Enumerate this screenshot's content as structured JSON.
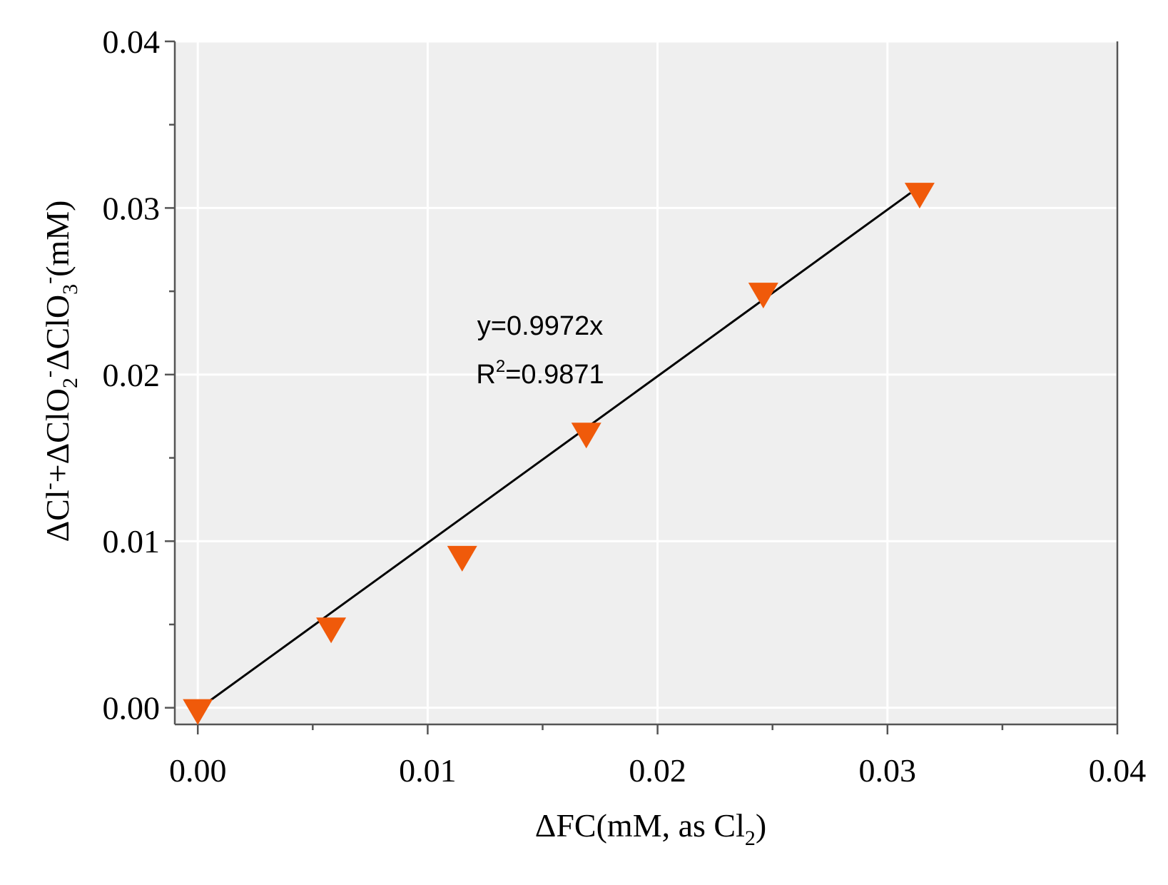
{
  "chart_data": {
    "type": "scatter",
    "title": "",
    "xlabel": {
      "main": "ΔFC(mM, as Cl",
      "sub": "2",
      "close": ")"
    },
    "ylabel": {
      "part1": "ΔCl",
      "sup1": "-",
      "part2": "+ΔClO",
      "sub2": "2",
      "sup2": "-",
      "part3": "ΔClO",
      "sub3": "3",
      "sup3": "-",
      "part4": "(mM)"
    },
    "xlim": [
      -0.001,
      0.04
    ],
    "ylim": [
      -0.001,
      0.04
    ],
    "xticks": [
      0.0,
      0.01,
      0.02,
      0.03,
      0.04
    ],
    "xtick_labels": [
      "0.00",
      "0.01",
      "0.02",
      "0.03",
      "0.04"
    ],
    "yticks": [
      0.0,
      0.01,
      0.02,
      0.03,
      0.04
    ],
    "ytick_labels": [
      "0.00",
      "0.01",
      "0.02",
      "0.03",
      "0.04"
    ],
    "grid": true,
    "plot_background": "#efefef",
    "series": [
      {
        "marker": "triangle-down",
        "color": "#f05a0a",
        "x": [
          0.0,
          0.0058,
          0.0115,
          0.0169,
          0.0246,
          0.0314
        ],
        "y": [
          0.0,
          0.0049,
          0.0092,
          0.0166,
          0.025,
          0.031
        ]
      }
    ],
    "fit_line": {
      "color": "#000000",
      "x": [
        0.0,
        0.031
      ],
      "y": [
        -0.0001,
        0.0309
      ]
    },
    "annotations": {
      "equation": "y=0.9972x",
      "r2_prefix": "R",
      "r2_sup": "2",
      "r2_value": "=0.9871",
      "color": "#f05a0a"
    }
  }
}
